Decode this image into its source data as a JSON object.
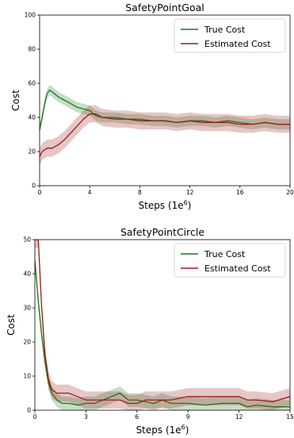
{
  "chart_data": [
    {
      "type": "line",
      "title": "SafetyPointGoal",
      "xlabel": "Steps (1e",
      "xlabel_sup": "6",
      "xlabel_end": ")",
      "ylabel": "Cost",
      "xlim": [
        0,
        20
      ],
      "ylim": [
        0,
        100
      ],
      "xticks": [
        0,
        4,
        8,
        12,
        16,
        20
      ],
      "xtick_labels": [
        "0",
        "4",
        "8",
        "12",
        "16",
        "20"
      ],
      "yticks": [
        0,
        20,
        40,
        60,
        80,
        100
      ],
      "ytick_labels": [
        "0",
        "20",
        "40",
        "60",
        "80",
        "100"
      ],
      "grid": false,
      "legend_position": "top-right",
      "series": [
        {
          "name": "True Cost",
          "color": "#1a7a1a",
          "band": 3,
          "x": [
            0,
            0.2,
            0.4,
            0.6,
            0.8,
            1.0,
            1.5,
            2.0,
            2.5,
            3.0,
            3.5,
            4.0,
            4.5,
            5.0,
            6.0,
            7.0,
            8.0,
            9.0,
            10.0,
            11.0,
            12.0,
            13.0,
            14.0,
            15.0,
            16.0,
            17.0,
            18.0,
            19.0,
            20.0
          ],
          "y": [
            33,
            40,
            48,
            54,
            56,
            55,
            52,
            50,
            48,
            46,
            45,
            44,
            41,
            40,
            40,
            39,
            39,
            38,
            38,
            37,
            38,
            38,
            37,
            38,
            37,
            36,
            37,
            36,
            36
          ]
        },
        {
          "name": "Estimated Cost",
          "color": "#9b1b1b",
          "band": 5,
          "x": [
            0,
            0.2,
            0.4,
            0.6,
            0.8,
            1.0,
            1.5,
            2.0,
            2.5,
            3.0,
            3.5,
            4.0,
            4.5,
            5.0,
            6.0,
            7.0,
            8.0,
            9.0,
            10.0,
            11.0,
            12.0,
            13.0,
            14.0,
            15.0,
            16.0,
            17.0,
            18.0,
            19.0,
            20.0
          ],
          "y": [
            17,
            20,
            21,
            22,
            22,
            22,
            24,
            27,
            31,
            35,
            39,
            42,
            42,
            40,
            39,
            39,
            38,
            38,
            38,
            37,
            38,
            37,
            37,
            37,
            36,
            36,
            37,
            36,
            36
          ]
        }
      ]
    },
    {
      "type": "line",
      "title": "SafetyPointCircle",
      "xlabel": "Steps (1e",
      "xlabel_sup": "6",
      "xlabel_end": ")",
      "ylabel": "Cost",
      "xlim": [
        0,
        15
      ],
      "ylim": [
        0,
        50
      ],
      "xticks": [
        0,
        3,
        6,
        9,
        12,
        15
      ],
      "xtick_labels": [
        "0",
        "3",
        "6",
        "9",
        "12",
        "15"
      ],
      "yticks": [
        0,
        10,
        20,
        30,
        40,
        50
      ],
      "ytick_labels": [
        "0",
        "10",
        "20",
        "30",
        "40",
        "50"
      ],
      "grid": false,
      "legend_position": "top-right",
      "series": [
        {
          "name": "True Cost",
          "color": "#1a7a1a",
          "band": 2,
          "x": [
            0,
            0.2,
            0.4,
            0.6,
            0.8,
            1.0,
            1.3,
            1.6,
            2.0,
            2.5,
            3.0,
            3.5,
            4.0,
            4.5,
            5.0,
            5.5,
            6.0,
            6.5,
            7.0,
            7.5,
            8.0,
            9.0,
            10.0,
            11.0,
            12.0,
            12.5,
            13.0,
            14.0,
            15.0
          ],
          "y": [
            44,
            32,
            22,
            14,
            8,
            5,
            3,
            2,
            2,
            1.5,
            2,
            2,
            3,
            4,
            5,
            3,
            3,
            2.5,
            2,
            3,
            2,
            2,
            1.5,
            2,
            2,
            1,
            1.5,
            1,
            1
          ]
        },
        {
          "name": "Estimated Cost",
          "color": "#9b1b1b",
          "band": 2.5,
          "x": [
            0,
            0.2,
            0.4,
            0.6,
            0.8,
            1.0,
            1.3,
            1.6,
            2.0,
            2.5,
            3.0,
            3.5,
            4.0,
            4.5,
            5.0,
            5.5,
            6.0,
            6.5,
            7.0,
            7.5,
            8.0,
            9.0,
            10.0,
            11.0,
            12.0,
            12.5,
            13.0,
            14.0,
            15.0
          ],
          "y": [
            50,
            50,
            30,
            16,
            9,
            6,
            5,
            5,
            5,
            4,
            3,
            3,
            3,
            3,
            3,
            2,
            2,
            3,
            3,
            3,
            3,
            4,
            4,
            4,
            4,
            3,
            3,
            2.5,
            4
          ]
        }
      ]
    }
  ]
}
